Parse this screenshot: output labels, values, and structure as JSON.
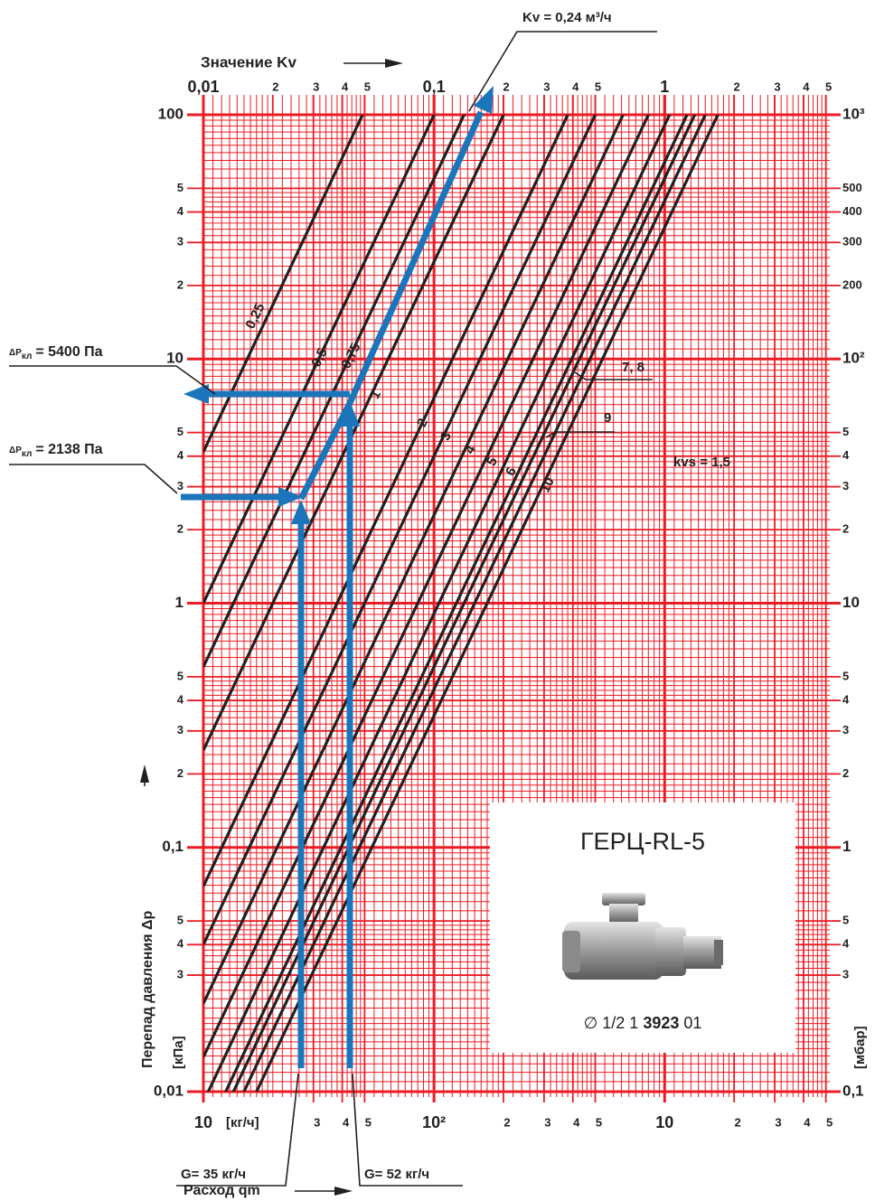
{
  "chart_data": {
    "type": "kv-nomogram",
    "x_label": "Расход qm",
    "x_unit": "[кг/ч]",
    "x2_label": "Значение Kv",
    "y_label": "Перепад давления Δр",
    "y_unit": "[кПа]",
    "y2_unit": "[мбар]",
    "log_scale": true,
    "grid": true,
    "grid_color": "#ed1c24",
    "line_color": "#231f20",
    "xlim": [
      10,
      5200
    ],
    "x2lim": [
      0.01,
      5.2
    ],
    "ylim": [
      0.01,
      100
    ],
    "y2lim": [
      0.1,
      1000
    ],
    "xticks": [
      {
        "value": 10,
        "label": "10"
      },
      {
        "value": 30,
        "label": "3"
      },
      {
        "value": 40,
        "label": "4"
      },
      {
        "value": 50,
        "label": "5"
      },
      {
        "value": 100,
        "label": "10²"
      },
      {
        "value": 200,
        "label": "2"
      },
      {
        "value": 300,
        "label": "3"
      },
      {
        "value": 400,
        "label": "4"
      },
      {
        "value": 500,
        "label": "5"
      },
      {
        "value": 1000,
        "label": "10"
      },
      {
        "value": 2000,
        "label": "2"
      },
      {
        "value": 3000,
        "label": "3"
      },
      {
        "value": 4000,
        "label": "4"
      },
      {
        "value": 5000,
        "label": "5"
      }
    ],
    "x2ticks": [
      {
        "value": 0.01,
        "label": "0,01"
      },
      {
        "value": 0.02,
        "label": "2"
      },
      {
        "value": 0.03,
        "label": "3"
      },
      {
        "value": 0.04,
        "label": "4"
      },
      {
        "value": 0.05,
        "label": "5"
      },
      {
        "value": 0.1,
        "label": "0,1"
      },
      {
        "value": 0.2,
        "label": "2"
      },
      {
        "value": 0.3,
        "label": "3"
      },
      {
        "value": 0.4,
        "label": "4"
      },
      {
        "value": 0.5,
        "label": "5"
      },
      1,
      2,
      3,
      4,
      5
    ],
    "yticks": [
      100,
      {
        "value": 50,
        "label": "5"
      },
      {
        "value": 40,
        "label": "4"
      },
      {
        "value": 30,
        "label": "3"
      },
      {
        "value": 20,
        "label": "2"
      },
      10,
      5,
      4,
      3,
      2,
      1,
      {
        "value": 0.5,
        "label": "5"
      },
      {
        "value": 0.4,
        "label": "4"
      },
      {
        "value": 0.3,
        "label": "3"
      },
      {
        "value": 0.2,
        "label": "2"
      },
      {
        "value": 0.1,
        "label": "0,1"
      },
      {
        "value": 0.05,
        "label": "5"
      },
      {
        "value": 0.04,
        "label": "4"
      },
      {
        "value": 0.03,
        "label": "3"
      },
      {
        "value": 0.01,
        "label": "0,01"
      }
    ],
    "y2ticks": [
      {
        "value": 1000,
        "label": "10³"
      },
      500,
      400,
      300,
      200,
      {
        "value": 100,
        "label": "10²"
      },
      {
        "value": 50,
        "label": "5"
      },
      {
        "value": 40,
        "label": "4"
      },
      {
        "value": 30,
        "label": "3"
      },
      {
        "value": 20,
        "label": "2"
      },
      10,
      5,
      4,
      3,
      2,
      1,
      {
        "value": 0.5,
        "label": "5"
      },
      {
        "value": 0.4,
        "label": "4"
      },
      {
        "value": 0.3,
        "label": "3"
      },
      {
        "value": 0.1,
        "label": "0,1"
      }
    ],
    "series": [
      {
        "name": "0,25",
        "kv": 0.049
      },
      {
        "name": "0,5",
        "kv": 0.1
      },
      {
        "name": "0,75",
        "kv": 0.135
      },
      {
        "name": "1",
        "kv": 0.2
      },
      {
        "name": "2",
        "kv": 0.38
      },
      {
        "name": "3",
        "kv": 0.5
      },
      {
        "name": "4",
        "kv": 0.66
      },
      {
        "name": "5",
        "kv": 0.85
      },
      {
        "name": "6",
        "kv": 1.05
      },
      {
        "kv": 1.25
      },
      {
        "kv": 1.35
      },
      {
        "name": "9",
        "kv": 1.5
      },
      {
        "name": "10",
        "kv": 1.7
      }
    ],
    "annotations": {
      "kv_result": "Kv = 0,24 м³/ч",
      "dp_high": {
        "symbol": "ΔP",
        "subscript": "кл",
        "text": "= 5400 Па"
      },
      "dp_low": {
        "symbol": "ΔP",
        "subscript": "кл",
        "text": "= 2138 Па"
      },
      "flow_low": "G= 35 кг/ч",
      "flow_high": "G= 52 кг/ч",
      "kvs": "kvs = 1,5",
      "group_7_8": "7, 8"
    },
    "inset": {
      "title": "ГЕРЦ-RL-5",
      "code": [
        "∅ 1/2",
        "1",
        "3923",
        "01"
      ]
    }
  }
}
